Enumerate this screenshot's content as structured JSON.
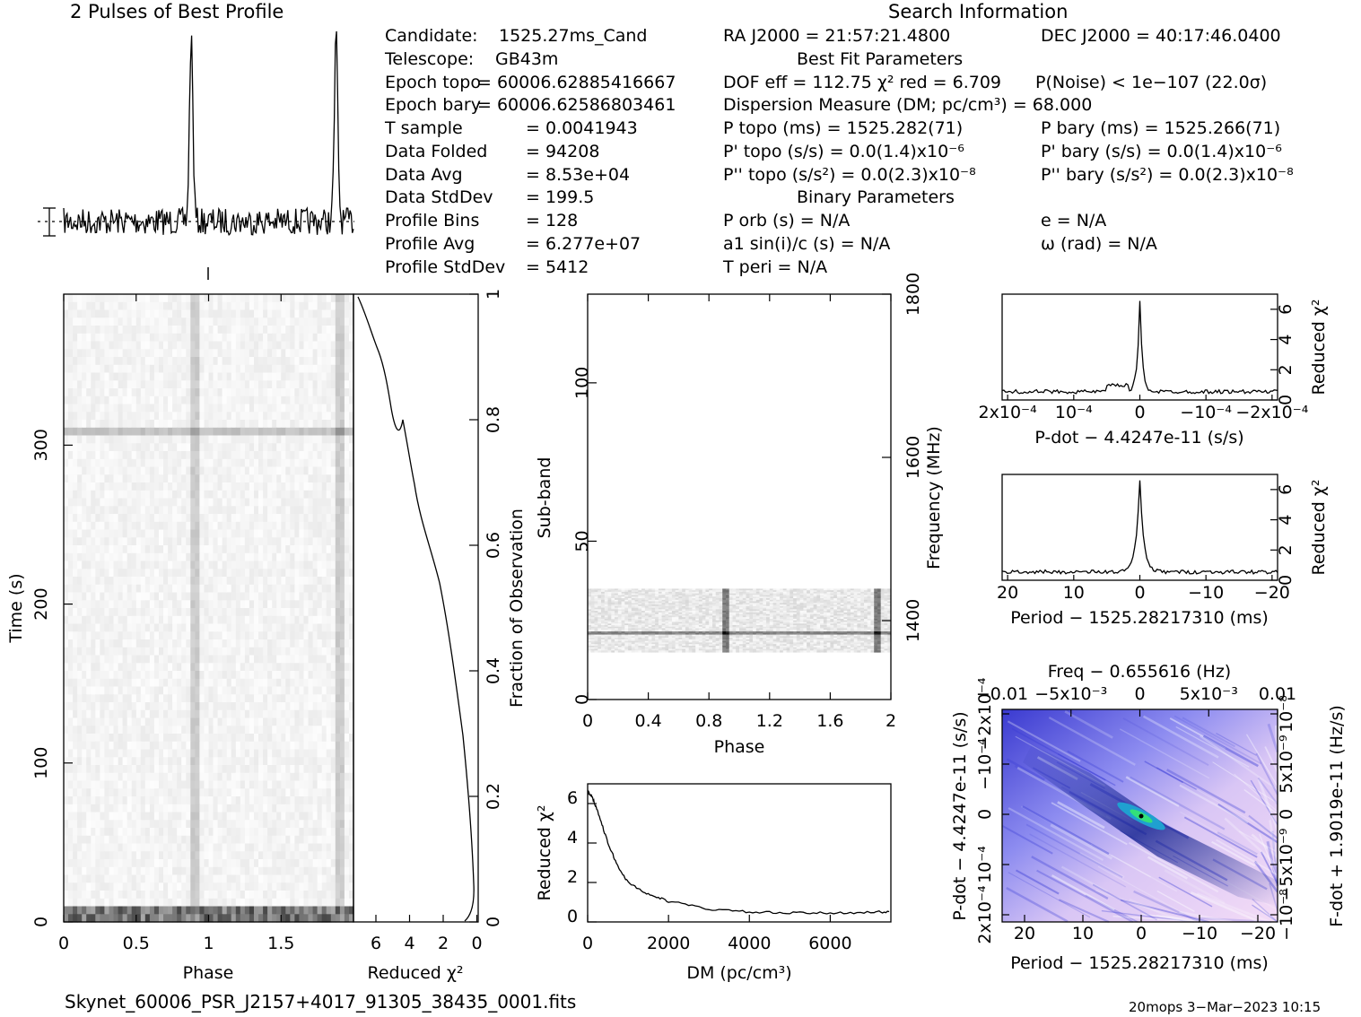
{
  "header": {
    "profile_title": "2 Pulses of Best Profile",
    "search_title": "Search Information",
    "best_fit_title": "Best Fit Parameters",
    "binary_title": "Binary Parameters"
  },
  "info_left": [
    {
      "label": "Candidate:",
      "value": "1525.27ms_Cand"
    },
    {
      "label": "Telescope:",
      "value": "GB43m"
    },
    {
      "label": "Epoch topo",
      "value": "= 60006.62885416667"
    },
    {
      "label": "Epoch bary",
      "value": "= 60006.62586803461"
    },
    {
      "label": "T sample",
      "value": "=   0.0041943"
    },
    {
      "label": "Data Folded",
      "value": "=   94208"
    },
    {
      "label": "Data Avg",
      "value": "=   8.53e+04"
    },
    {
      "label": "Data StdDev",
      "value": "=   199.5"
    },
    {
      "label": "Profile Bins",
      "value": "=   128"
    },
    {
      "label": "Profile Avg",
      "value": "=   6.277e+07"
    },
    {
      "label": "Profile StdDev",
      "value": "=   5412"
    }
  ],
  "info_mid": {
    "ra": "RA J2000 = 21:57:21.4800",
    "dof": "DOF eff = 112.75   χ² red = 6.709",
    "dm": "Dispersion Measure (DM; pc/cm³) = 68.000",
    "p_topo": "P topo (ms) =  1525.282(71)",
    "pd_topo": "P' topo (s/s) = 0.0(1.4)x10⁻⁶",
    "pdd_topo": "P'' topo (s/s²) = 0.0(2.3)x10⁻⁸",
    "porb": "P orb (s) = N/A",
    "a1": "a1 sin(i)/c (s) = N/A",
    "tperi": "T peri = N/A"
  },
  "info_right": {
    "dec": "DEC J2000 = 40:17:46.0400",
    "pnoise": "P(Noise) < 1e−107   (22.0σ)",
    "p_bary": "P bary (ms) =  1525.266(71)",
    "pd_bary": "P' bary (s/s) = 0.0(1.4)x10⁻⁶",
    "pdd_bary": "P'' bary (s/s²) = 0.0(2.3)x10⁻⁸",
    "ecc": "e = N/A",
    "omega": "ω (rad) = N/A"
  },
  "footer": {
    "filename": "Skynet_60006_PSR_J2157+4017_91305_38435_0001.fits",
    "stamp": "20mops  3−Mar−2023 10:15"
  },
  "colors": {
    "ink": "#000000",
    "ppdot_dark": "#0a1a8a",
    "ppdot_light": "#f2d6f4",
    "ppdot_peak": "#33e07a"
  },
  "chart_data": [
    {
      "type": "line",
      "name": "profile",
      "title": "2 Pulses of Best Profile",
      "x": [
        0,
        2
      ],
      "pulse_phases": [
        0.88,
        1.88
      ]
    },
    {
      "type": "heatmap",
      "name": "time-phase",
      "xlabel": "Phase",
      "ylabel": "Time (s)",
      "xlim": [
        0,
        2
      ],
      "ylim": [
        0,
        395
      ],
      "xticks": [
        "0",
        "0.5",
        "1",
        "1.5"
      ],
      "yticks": [
        "0",
        "100",
        "200",
        "300"
      ]
    },
    {
      "type": "line",
      "name": "chi2-vs-time",
      "xlabel": "Reduced χ²",
      "ylabel": "Fraction of Observation",
      "xticks": [
        "6",
        "4",
        "2",
        "0"
      ],
      "yticks": [
        "0",
        "0.2",
        "0.4",
        "0.6",
        "0.8",
        "1"
      ]
    },
    {
      "type": "heatmap",
      "name": "subband-phase",
      "xlabel": "Phase",
      "ylabel": "Sub-band",
      "y2label": "Frequency (MHz)",
      "xlim": [
        0,
        2
      ],
      "ylim": [
        0,
        128
      ],
      "xticks": [
        "0",
        "0.4",
        "0.8",
        "1.2",
        "1.6",
        "2"
      ],
      "yticks": [
        "0",
        "50",
        "100"
      ],
      "y2ticks": [
        "1400",
        "1600",
        "1800"
      ],
      "occupied_subbands": [
        15,
        35
      ]
    },
    {
      "type": "line",
      "name": "dm-curve",
      "xlabel": "DM (pc/cm³)",
      "ylabel": "Reduced χ²",
      "xlim": [
        0,
        7500
      ],
      "ylim": [
        0,
        7
      ],
      "xticks": [
        "0",
        "2000",
        "4000",
        "6000"
      ],
      "yticks": [
        "0",
        "2",
        "4",
        "6"
      ],
      "x": [
        0,
        100,
        250,
        500,
        750,
        1000,
        1500,
        2000,
        3000,
        4000,
        5000,
        6000,
        7000,
        7500
      ],
      "y": [
        6.6,
        6.4,
        5.6,
        4.0,
        2.8,
        2.0,
        1.4,
        1.05,
        0.65,
        0.5,
        0.45,
        0.45,
        0.5,
        0.5
      ]
    },
    {
      "type": "line",
      "name": "pdot-curve",
      "xlabel": "P-dot − 4.4247e-11 (s/s)",
      "ylabel": "Reduced χ²",
      "xticks": [
        "2x10⁻⁴",
        "10⁻⁴",
        "0",
        "−10⁻⁴",
        "−2x10⁻⁴"
      ],
      "yticks": [
        "0",
        "2",
        "4",
        "6"
      ],
      "ylim": [
        0,
        7
      ],
      "peak": 6.7
    },
    {
      "type": "line",
      "name": "period-curve",
      "xlabel": "Period − 1525.28217310 (ms)",
      "ylabel": "Reduced χ²",
      "xticks": [
        "20",
        "10",
        "0",
        "−10",
        "−20"
      ],
      "yticks": [
        "0",
        "2",
        "4",
        "6"
      ],
      "ylim": [
        0,
        7
      ],
      "peak": 6.7
    },
    {
      "type": "heatmap",
      "name": "p-pdot",
      "title": "Freq − 0.655616 (Hz)",
      "xlabel": "Period − 1525.28217310 (ms)",
      "ylabel": "P-dot − 4.4247e-11 (s/s)",
      "y2label": "F-dot + 1.9019e-11 (Hz/s)",
      "xticks": [
        "20",
        "10",
        "0",
        "−10",
        "−20"
      ],
      "x2ticks": [
        "−0.01",
        "−5x10⁻³",
        "0",
        "5x10⁻³",
        "0.01"
      ],
      "yticks": [
        "2x10⁻⁴",
        "10⁻⁴",
        "0",
        "−10⁻⁴",
        "−2x10⁻⁴"
      ],
      "y2ticks": [
        "−10⁻⁸",
        "−5x10⁻⁹",
        "0",
        "5x10⁻⁹",
        "10⁻⁸"
      ]
    }
  ]
}
